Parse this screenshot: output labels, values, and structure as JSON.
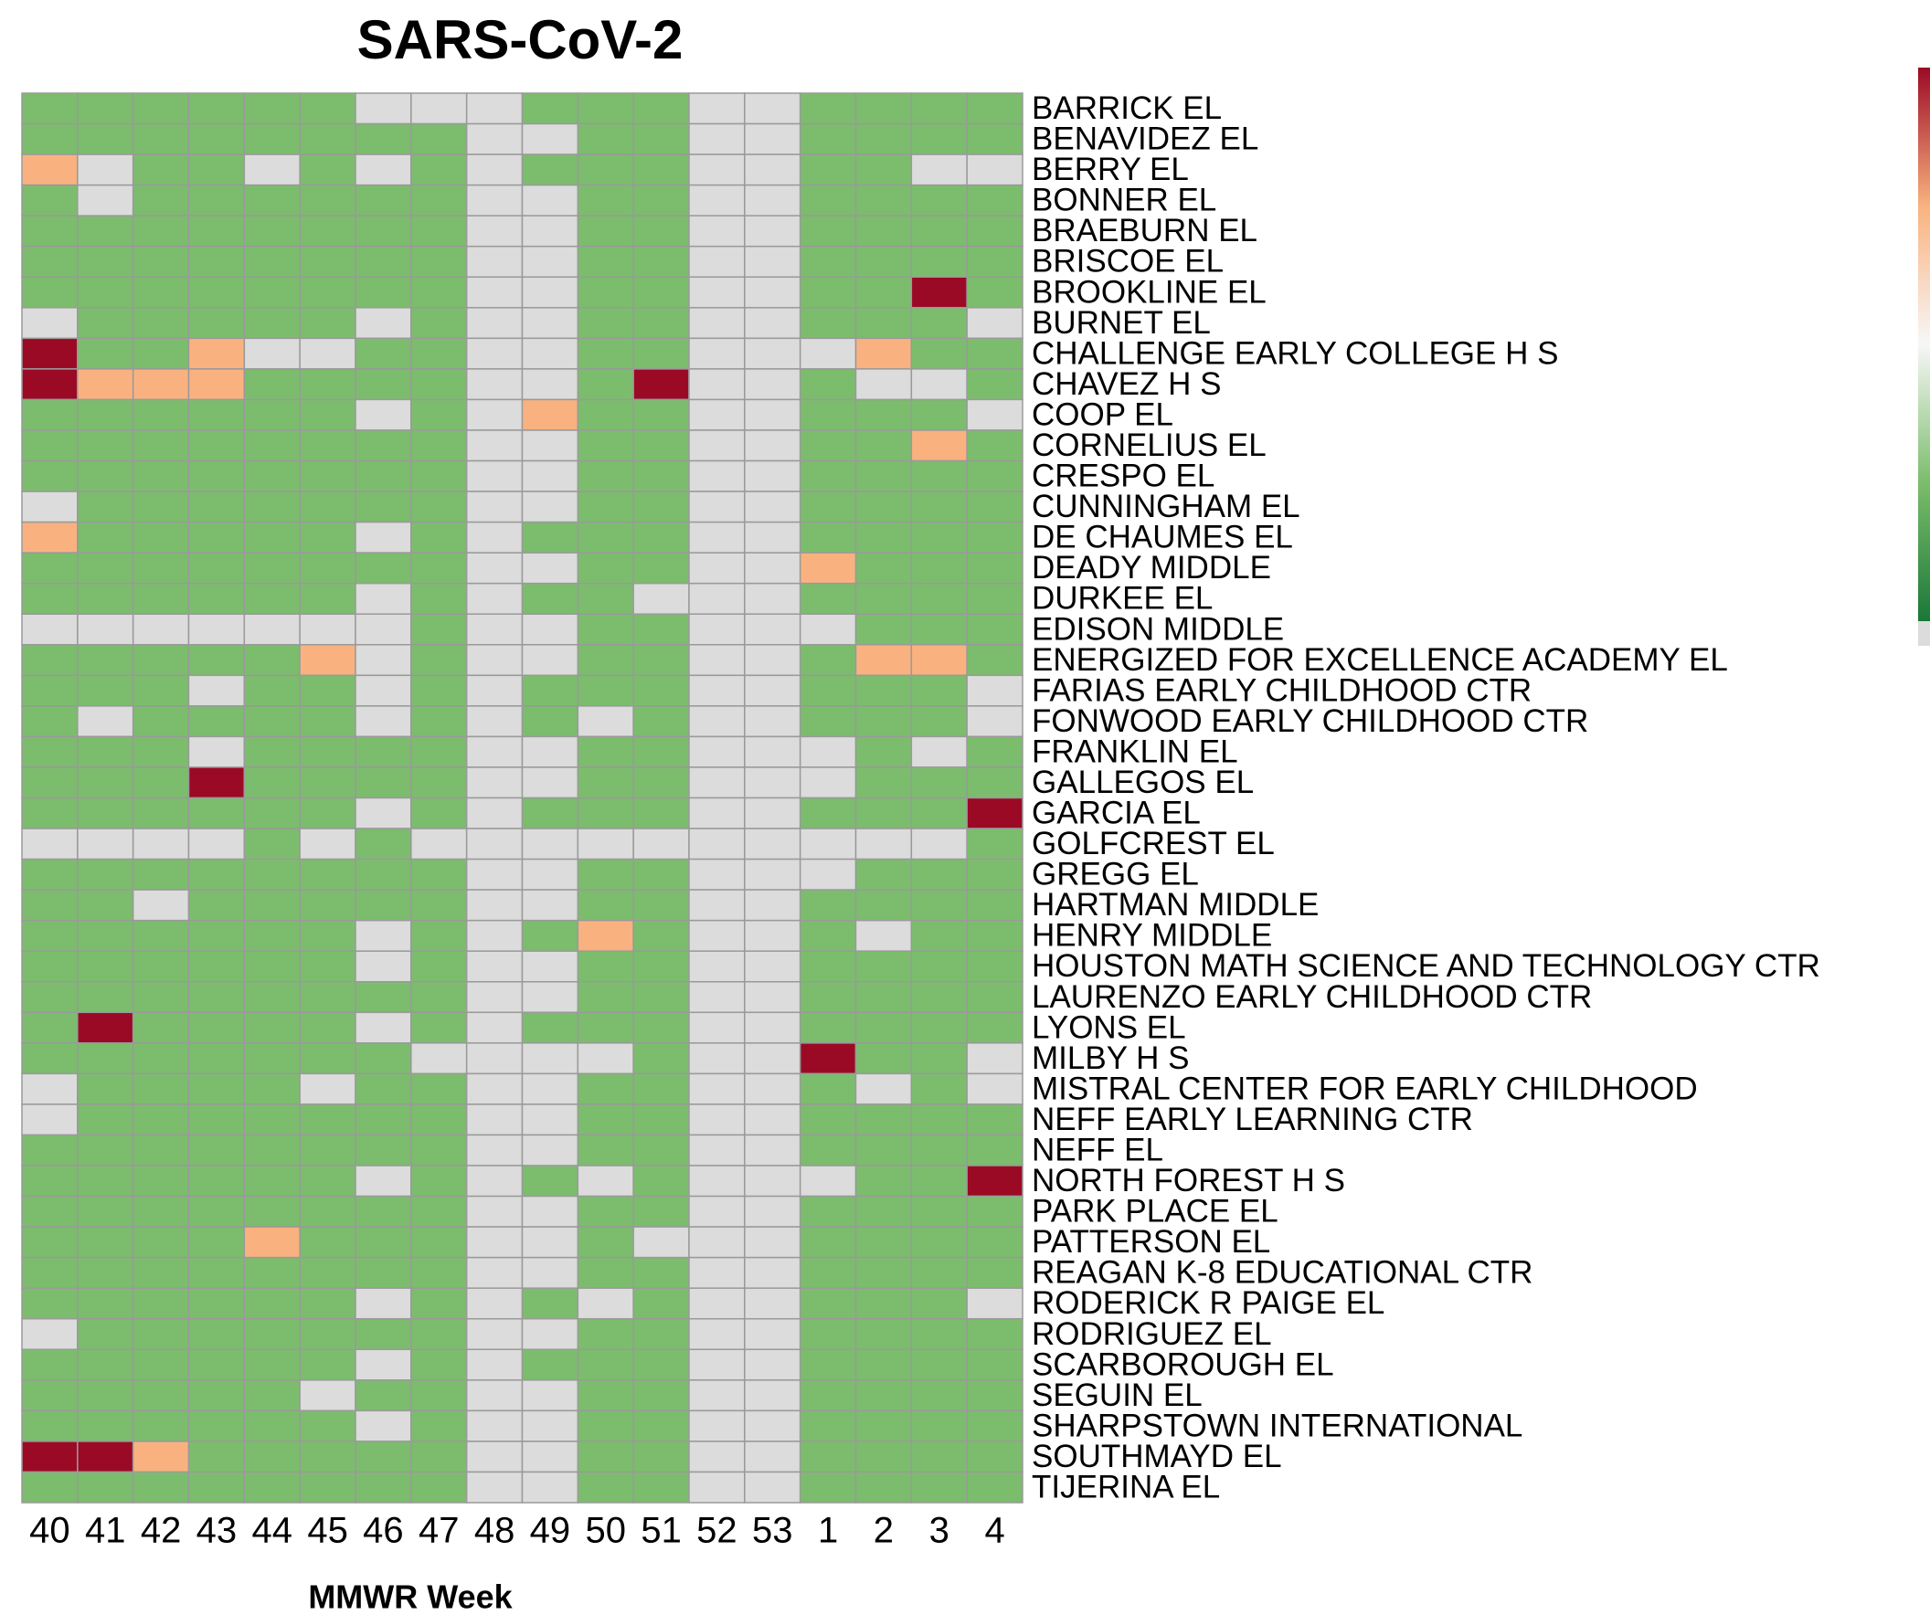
{
  "chart_data": {
    "type": "heatmap",
    "title": "SARS-CoV-2",
    "x_label": "MMWR Week",
    "categories": [
      "40",
      "41",
      "42",
      "43",
      "44",
      "45",
      "46",
      "47",
      "48",
      "49",
      "50",
      "51",
      "52",
      "53",
      "1",
      "2",
      "3",
      "4"
    ],
    "rows": [
      "BARRICK EL",
      "BENAVIDEZ EL",
      "BERRY EL",
      "BONNER EL",
      "BRAEBURN EL",
      "BRISCOE EL",
      "BROOKLINE EL",
      "BURNET EL",
      "CHALLENGE EARLY COLLEGE H S",
      "CHAVEZ H S",
      "COOP EL",
      "CORNELIUS EL",
      "CRESPO EL",
      "CUNNINGHAM EL",
      "DE CHAUMES EL",
      "DEADY MIDDLE",
      "DURKEE EL",
      "EDISON MIDDLE",
      "ENERGIZED FOR EXCELLENCE ACADEMY EL",
      "FARIAS EARLY CHILDHOOD CTR",
      "FONWOOD EARLY CHILDHOOD CTR",
      "FRANKLIN EL",
      "GALLEGOS EL",
      "GARCIA EL",
      "GOLFCREST EL",
      "GREGG EL",
      "HARTMAN MIDDLE",
      "HENRY MIDDLE",
      "HOUSTON MATH SCIENCE AND TECHNOLOGY CTR",
      "LAURENZO EARLY CHILDHOOD CTR",
      "LYONS EL",
      "MILBY H S",
      "MISTRAL CENTER FOR EARLY CHILDHOOD",
      "NEFF EARLY LEARNING CTR",
      "NEFF EL",
      "NORTH FOREST H S",
      "PARK PLACE EL",
      "PATTERSON EL",
      "REAGAN K-8 EDUCATIONAL CTR",
      "RODERICK R PAIGE EL",
      "RODRIGUEZ EL",
      "SCARBOROUGH EL",
      "SEGUIN EL",
      "SHARPSTOWN INTERNATIONAL",
      "SOUTHMAYD EL",
      "TIJERINA EL"
    ],
    "values": [
      [
        1,
        1,
        1,
        1,
        1,
        1,
        null,
        null,
        null,
        1,
        1,
        1,
        null,
        null,
        1,
        1,
        1,
        1
      ],
      [
        1,
        1,
        1,
        1,
        1,
        1,
        1,
        1,
        null,
        null,
        1,
        1,
        null,
        null,
        1,
        1,
        1,
        1
      ],
      [
        3,
        null,
        1,
        1,
        null,
        1,
        null,
        1,
        null,
        1,
        1,
        1,
        null,
        null,
        1,
        1,
        null,
        null
      ],
      [
        1,
        null,
        1,
        1,
        1,
        1,
        1,
        1,
        null,
        null,
        1,
        1,
        null,
        null,
        1,
        1,
        1,
        1
      ],
      [
        1,
        1,
        1,
        1,
        1,
        1,
        1,
        1,
        null,
        null,
        1,
        1,
        null,
        null,
        1,
        1,
        1,
        1
      ],
      [
        1,
        1,
        1,
        1,
        1,
        1,
        1,
        1,
        null,
        null,
        1,
        1,
        null,
        null,
        1,
        1,
        1,
        1
      ],
      [
        1,
        1,
        1,
        1,
        1,
        1,
        1,
        1,
        null,
        null,
        1,
        1,
        null,
        null,
        1,
        1,
        4,
        1
      ],
      [
        null,
        1,
        1,
        1,
        1,
        1,
        null,
        1,
        null,
        null,
        1,
        1,
        null,
        null,
        1,
        1,
        1,
        null
      ],
      [
        4,
        1,
        1,
        3,
        null,
        null,
        1,
        1,
        null,
        null,
        1,
        1,
        null,
        null,
        null,
        3,
        1,
        1
      ],
      [
        4,
        3,
        3,
        3,
        1,
        1,
        1,
        1,
        null,
        null,
        1,
        4,
        null,
        null,
        1,
        null,
        null,
        1
      ],
      [
        1,
        1,
        1,
        1,
        1,
        1,
        null,
        1,
        null,
        3,
        1,
        1,
        null,
        null,
        1,
        1,
        1,
        null
      ],
      [
        1,
        1,
        1,
        1,
        1,
        1,
        1,
        1,
        null,
        null,
        1,
        1,
        null,
        null,
        1,
        1,
        3,
        1
      ],
      [
        1,
        1,
        1,
        1,
        1,
        1,
        1,
        1,
        null,
        null,
        1,
        1,
        null,
        null,
        1,
        1,
        1,
        1
      ],
      [
        null,
        1,
        1,
        1,
        1,
        1,
        1,
        1,
        null,
        null,
        1,
        1,
        null,
        null,
        1,
        1,
        1,
        1
      ],
      [
        3,
        1,
        1,
        1,
        1,
        1,
        null,
        1,
        null,
        1,
        1,
        1,
        null,
        null,
        1,
        1,
        1,
        1
      ],
      [
        1,
        1,
        1,
        1,
        1,
        1,
        1,
        1,
        null,
        null,
        1,
        1,
        null,
        null,
        3,
        1,
        1,
        1
      ],
      [
        1,
        1,
        1,
        1,
        1,
        1,
        null,
        1,
        null,
        1,
        1,
        null,
        null,
        null,
        1,
        1,
        1,
        1
      ],
      [
        null,
        null,
        null,
        null,
        null,
        null,
        null,
        1,
        null,
        null,
        1,
        1,
        null,
        null,
        null,
        1,
        1,
        1
      ],
      [
        1,
        1,
        1,
        1,
        1,
        3,
        null,
        1,
        null,
        null,
        1,
        1,
        null,
        null,
        1,
        3,
        3,
        1
      ],
      [
        1,
        1,
        1,
        null,
        1,
        1,
        null,
        1,
        null,
        1,
        1,
        1,
        null,
        null,
        1,
        1,
        1,
        null
      ],
      [
        1,
        null,
        1,
        1,
        1,
        1,
        null,
        1,
        null,
        1,
        null,
        1,
        null,
        null,
        1,
        1,
        1,
        null
      ],
      [
        1,
        1,
        1,
        null,
        1,
        1,
        1,
        1,
        null,
        null,
        1,
        1,
        null,
        null,
        null,
        1,
        null,
        1
      ],
      [
        1,
        1,
        1,
        4,
        1,
        1,
        1,
        1,
        null,
        null,
        1,
        1,
        null,
        null,
        null,
        1,
        1,
        1
      ],
      [
        1,
        1,
        1,
        1,
        1,
        1,
        null,
        1,
        null,
        1,
        1,
        1,
        null,
        null,
        1,
        1,
        1,
        4
      ],
      [
        null,
        null,
        null,
        null,
        1,
        null,
        1,
        null,
        null,
        null,
        null,
        null,
        null,
        null,
        null,
        null,
        null,
        1
      ],
      [
        1,
        1,
        1,
        1,
        1,
        1,
        1,
        1,
        null,
        null,
        1,
        1,
        null,
        null,
        null,
        1,
        1,
        1
      ],
      [
        1,
        1,
        null,
        1,
        1,
        1,
        1,
        1,
        null,
        null,
        1,
        1,
        null,
        null,
        1,
        1,
        1,
        1
      ],
      [
        1,
        1,
        1,
        1,
        1,
        1,
        null,
        1,
        null,
        1,
        3,
        1,
        null,
        null,
        1,
        null,
        1,
        1
      ],
      [
        1,
        1,
        1,
        1,
        1,
        1,
        null,
        1,
        null,
        null,
        1,
        1,
        null,
        null,
        1,
        1,
        1,
        1
      ],
      [
        1,
        1,
        1,
        1,
        1,
        1,
        1,
        1,
        null,
        null,
        1,
        1,
        null,
        null,
        1,
        1,
        1,
        1
      ],
      [
        1,
        4,
        1,
        1,
        1,
        1,
        null,
        1,
        null,
        1,
        1,
        1,
        null,
        null,
        1,
        1,
        1,
        1
      ],
      [
        1,
        1,
        1,
        1,
        1,
        1,
        1,
        null,
        null,
        null,
        null,
        1,
        null,
        null,
        4,
        1,
        1,
        null
      ],
      [
        null,
        1,
        1,
        1,
        1,
        null,
        1,
        1,
        null,
        null,
        1,
        1,
        null,
        null,
        1,
        null,
        1,
        null
      ],
      [
        null,
        1,
        1,
        1,
        1,
        1,
        1,
        1,
        null,
        null,
        1,
        1,
        null,
        null,
        1,
        1,
        1,
        1
      ],
      [
        1,
        1,
        1,
        1,
        1,
        1,
        1,
        1,
        null,
        null,
        1,
        1,
        null,
        null,
        1,
        1,
        1,
        1
      ],
      [
        1,
        1,
        1,
        1,
        1,
        1,
        null,
        1,
        null,
        1,
        null,
        1,
        null,
        null,
        null,
        1,
        1,
        4
      ],
      [
        1,
        1,
        1,
        1,
        1,
        1,
        1,
        1,
        null,
        null,
        1,
        1,
        null,
        null,
        1,
        1,
        1,
        1
      ],
      [
        1,
        1,
        1,
        1,
        3,
        1,
        1,
        1,
        null,
        null,
        1,
        null,
        null,
        null,
        1,
        1,
        1,
        1
      ],
      [
        1,
        1,
        1,
        1,
        1,
        1,
        1,
        1,
        null,
        null,
        1,
        1,
        null,
        null,
        1,
        1,
        1,
        1
      ],
      [
        1,
        1,
        1,
        1,
        1,
        1,
        null,
        1,
        null,
        1,
        null,
        1,
        null,
        null,
        1,
        1,
        1,
        null
      ],
      [
        null,
        1,
        1,
        1,
        1,
        1,
        1,
        1,
        null,
        null,
        1,
        1,
        null,
        null,
        1,
        1,
        1,
        1
      ],
      [
        1,
        1,
        1,
        1,
        1,
        1,
        null,
        1,
        null,
        1,
        1,
        1,
        null,
        null,
        1,
        1,
        1,
        1
      ],
      [
        1,
        1,
        1,
        1,
        1,
        null,
        1,
        1,
        null,
        null,
        1,
        1,
        null,
        null,
        1,
        1,
        1,
        1
      ],
      [
        1,
        1,
        1,
        1,
        1,
        1,
        null,
        1,
        null,
        null,
        1,
        1,
        null,
        null,
        1,
        1,
        1,
        1
      ],
      [
        4,
        4,
        3,
        1,
        1,
        1,
        1,
        1,
        null,
        null,
        1,
        1,
        null,
        null,
        1,
        1,
        1,
        1
      ],
      [
        1,
        1,
        1,
        1,
        1,
        1,
        1,
        1,
        null,
        null,
        1,
        1,
        null,
        null,
        1,
        1,
        1,
        1
      ]
    ],
    "zlim": [
      0,
      4
    ],
    "colorscale": [
      [
        0,
        "#1a7837"
      ],
      [
        0.25,
        "#7bbd6c"
      ],
      [
        0.5,
        "#f7f7f7"
      ],
      [
        0.75,
        "#f9b27f"
      ],
      [
        1,
        "#9b0a25"
      ]
    ],
    "na_color": "#dcdcdc",
    "cell_border": "#9a9a9a"
  }
}
